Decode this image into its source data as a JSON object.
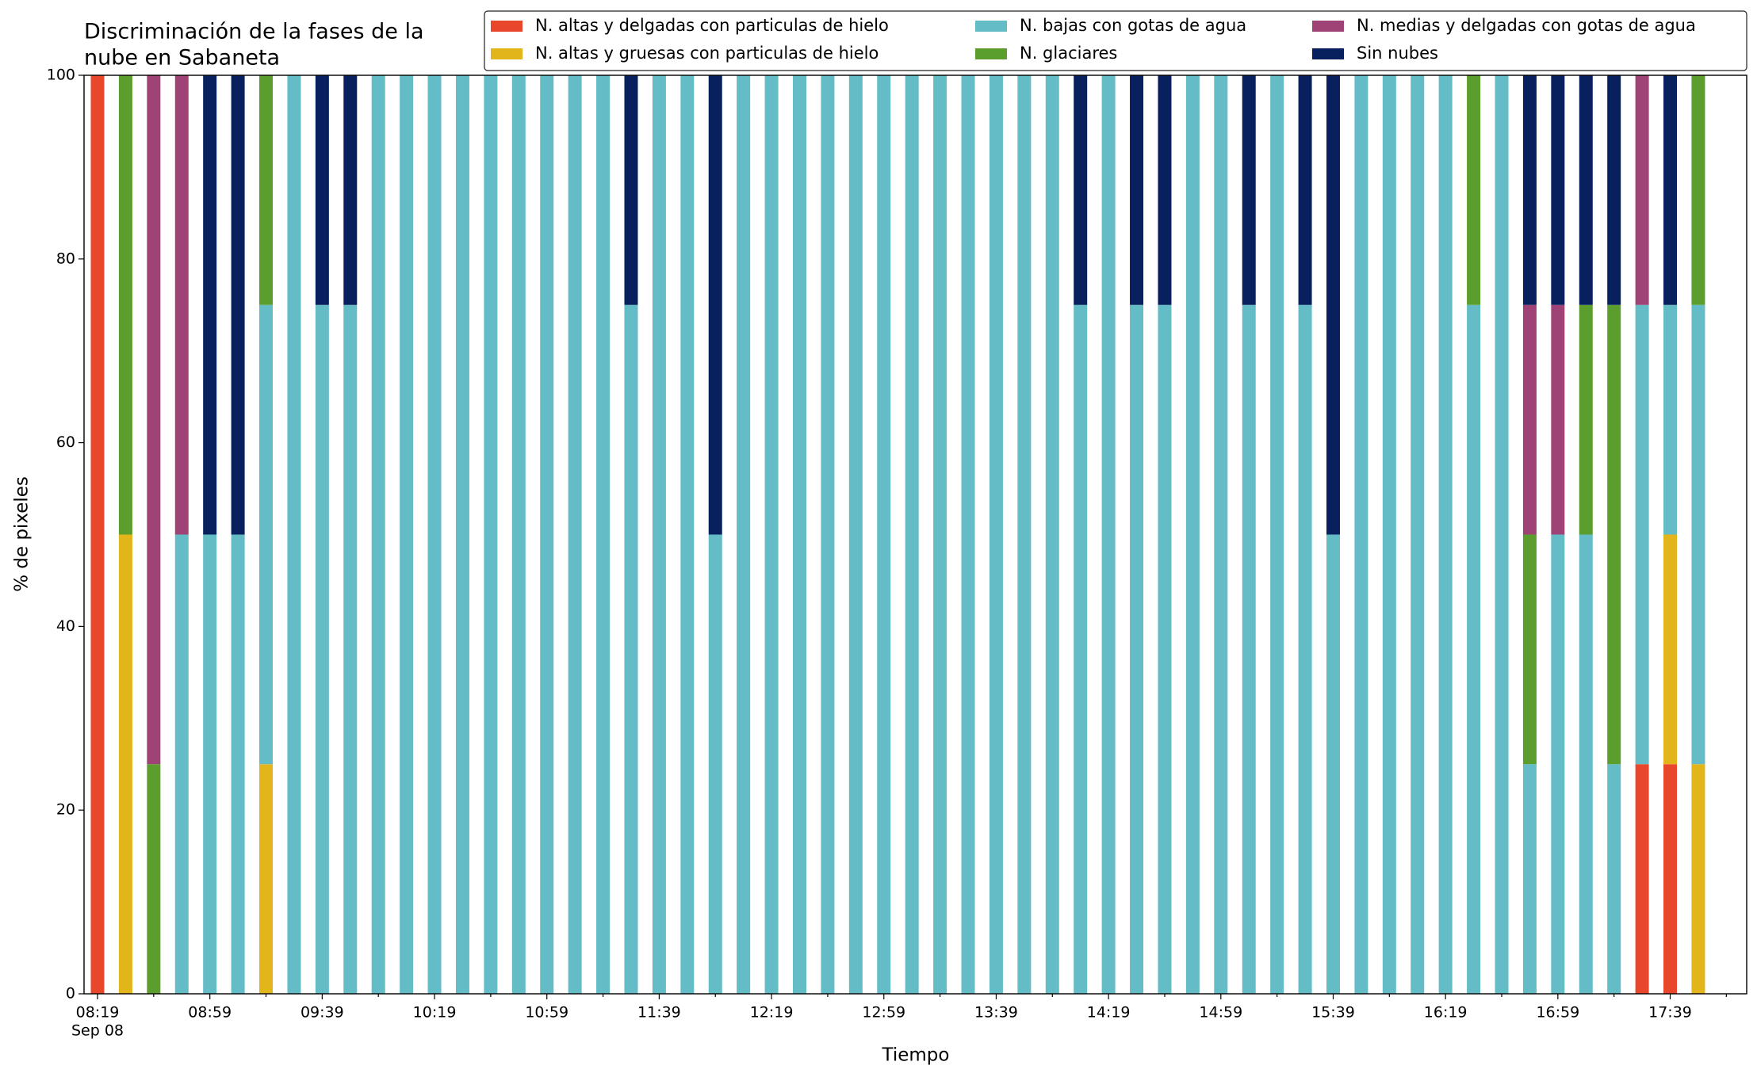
{
  "chart_data": {
    "type": "stacked_bar",
    "title": [
      "Discriminación de la fases de la",
      "nube en Sabaneta"
    ],
    "xlabel": "Tiempo",
    "ylabel": "% de pixeles",
    "x_sublabel": "Sep 08",
    "categories": [
      "08:19",
      null,
      null,
      null,
      "08:59",
      null,
      null,
      null,
      "09:39",
      null,
      null,
      null,
      "10:19",
      null,
      null,
      null,
      "10:59",
      null,
      null,
      null,
      "11:39",
      null,
      null,
      null,
      "12:19",
      null,
      null,
      null,
      "12:59",
      null,
      null,
      null,
      "13:39",
      null,
      null,
      null,
      "14:19",
      null,
      null,
      null,
      "14:59",
      null,
      null,
      null,
      "15:39",
      null,
      null,
      null,
      "16:19",
      null,
      null,
      null,
      "16:59",
      null,
      null,
      null,
      "17:39",
      null
    ],
    "ylim": [
      0,
      100
    ],
    "yticks": [
      0,
      20,
      40,
      60,
      80,
      100
    ],
    "legend": "top-right",
    "series": [
      {
        "name": "N. altas y delgadas con particulas de hielo",
        "color": "#e8472b",
        "values": [
          100,
          0,
          0,
          0,
          0,
          0,
          0,
          0,
          0,
          0,
          0,
          0,
          0,
          0,
          0,
          0,
          0,
          0,
          0,
          0,
          0,
          0,
          0,
          0,
          0,
          0,
          0,
          0,
          0,
          0,
          0,
          0,
          0,
          0,
          0,
          0,
          0,
          0,
          0,
          0,
          0,
          0,
          0,
          0,
          0,
          0,
          0,
          0,
          0,
          0,
          0,
          0,
          0,
          0,
          0,
          25,
          25,
          0
        ]
      },
      {
        "name": "N. altas y gruesas con particulas de hielo",
        "color": "#e2b51a",
        "values": [
          0,
          50,
          0,
          0,
          0,
          0,
          25,
          0,
          0,
          0,
          0,
          0,
          0,
          0,
          0,
          0,
          0,
          0,
          0,
          0,
          0,
          0,
          0,
          0,
          0,
          0,
          0,
          0,
          0,
          0,
          0,
          0,
          0,
          0,
          0,
          0,
          0,
          0,
          0,
          0,
          0,
          0,
          0,
          0,
          0,
          0,
          0,
          0,
          0,
          0,
          0,
          0,
          0,
          0,
          0,
          0,
          25,
          25
        ]
      },
      {
        "name": "N. bajas con gotas de agua",
        "color": "#64bcc7",
        "values": [
          0,
          0,
          0,
          50,
          50,
          50,
          50,
          100,
          75,
          75,
          100,
          100,
          100,
          100,
          100,
          100,
          100,
          100,
          100,
          75,
          100,
          100,
          50,
          100,
          100,
          100,
          100,
          100,
          100,
          100,
          100,
          100,
          100,
          100,
          100,
          75,
          100,
          75,
          75,
          100,
          100,
          75,
          100,
          75,
          50,
          100,
          100,
          100,
          100,
          75,
          100,
          25,
          50,
          50,
          25,
          50,
          25,
          50
        ]
      },
      {
        "name": "N. glaciares",
        "color": "#5c9e2d",
        "values": [
          0,
          50,
          25,
          0,
          0,
          0,
          25,
          0,
          0,
          0,
          0,
          0,
          0,
          0,
          0,
          0,
          0,
          0,
          0,
          0,
          0,
          0,
          0,
          0,
          0,
          0,
          0,
          0,
          0,
          0,
          0,
          0,
          0,
          0,
          0,
          0,
          0,
          0,
          0,
          0,
          0,
          0,
          0,
          0,
          0,
          0,
          0,
          0,
          0,
          25,
          0,
          25,
          0,
          25,
          50,
          0,
          0,
          25
        ]
      },
      {
        "name": "N. medias y delgadas con gotas de agua",
        "color": "#9f4275",
        "values": [
          0,
          0,
          75,
          50,
          0,
          0,
          0,
          0,
          0,
          0,
          0,
          0,
          0,
          0,
          0,
          0,
          0,
          0,
          0,
          0,
          0,
          0,
          0,
          0,
          0,
          0,
          0,
          0,
          0,
          0,
          0,
          0,
          0,
          0,
          0,
          0,
          0,
          0,
          0,
          0,
          0,
          0,
          0,
          0,
          0,
          0,
          0,
          0,
          0,
          0,
          0,
          25,
          25,
          0,
          0,
          25,
          0,
          0
        ]
      },
      {
        "name": "Sin nubes",
        "color": "#08205e",
        "values": [
          0,
          0,
          0,
          0,
          50,
          50,
          0,
          0,
          25,
          25,
          0,
          0,
          0,
          0,
          0,
          0,
          0,
          0,
          0,
          25,
          0,
          0,
          50,
          0,
          0,
          0,
          0,
          0,
          0,
          0,
          0,
          0,
          0,
          0,
          0,
          25,
          0,
          25,
          25,
          0,
          0,
          25,
          0,
          25,
          50,
          0,
          0,
          0,
          0,
          0,
          0,
          25,
          25,
          25,
          25,
          0,
          25,
          0
        ]
      }
    ]
  }
}
